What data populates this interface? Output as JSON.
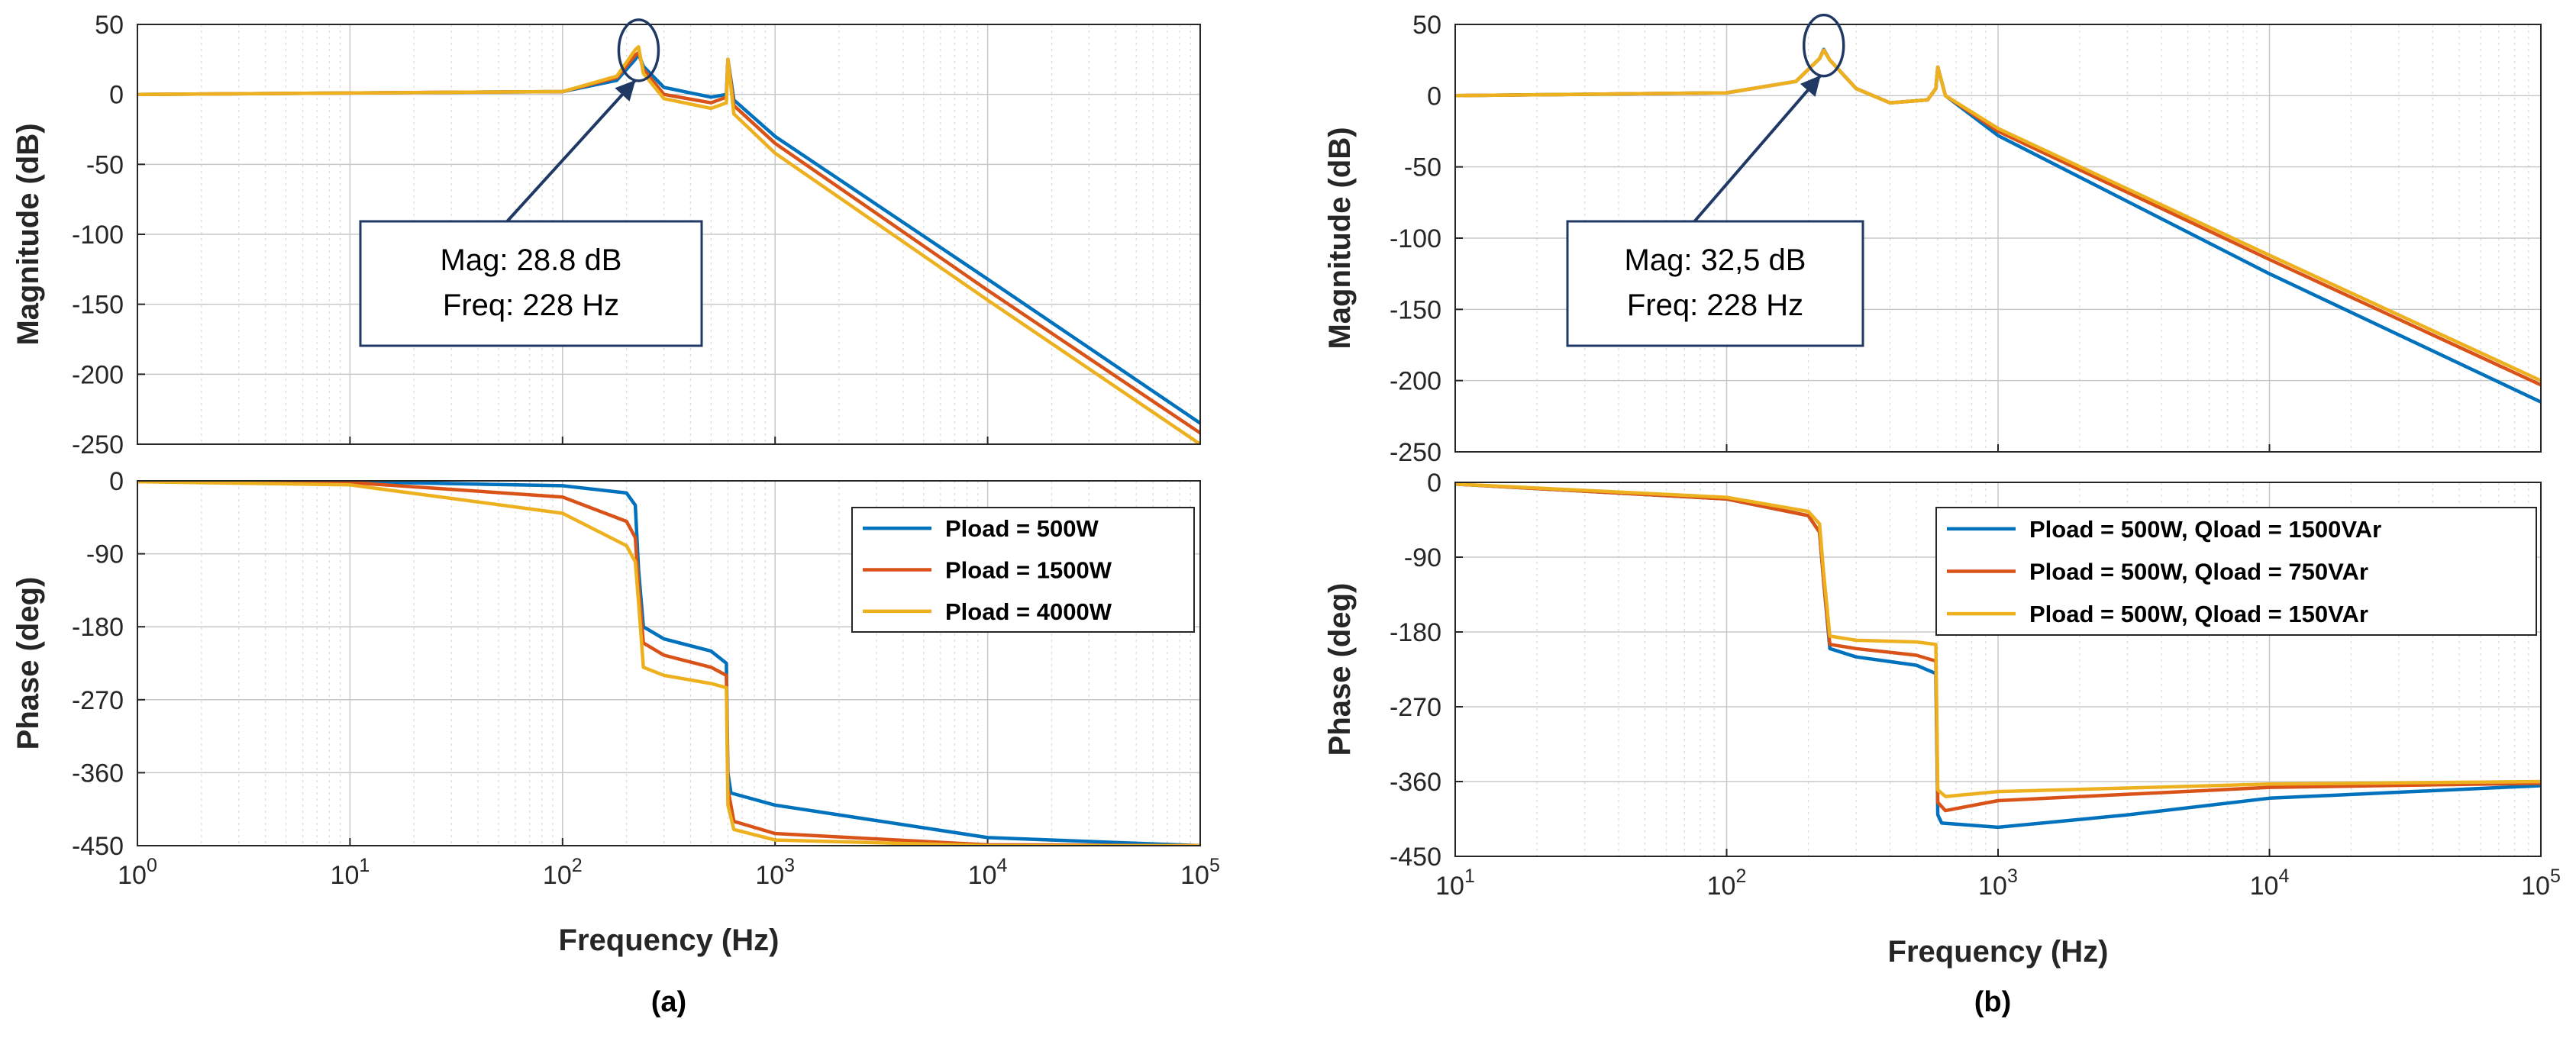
{
  "figure": {
    "panels": [
      {
        "label": "(a)",
        "xlabel": "Frequency  (Hz)",
        "mag_ylabel": "Magnitude (dB)",
        "phase_ylabel": "Phase (deg)",
        "xticks": [
          {
            "exp": 0,
            "base": "10",
            "sup": "0"
          },
          {
            "exp": 1,
            "base": "10",
            "sup": "1"
          },
          {
            "exp": 2,
            "base": "10",
            "sup": "2"
          },
          {
            "exp": 3,
            "base": "10",
            "sup": "3"
          },
          {
            "exp": 4,
            "base": "10",
            "sup": "4"
          },
          {
            "exp": 5,
            "base": "10",
            "sup": "5"
          }
        ],
        "annotation": {
          "line1": "Mag: 28.8 dB",
          "line2": "Freq: 228 Hz",
          "freq_hz": 228,
          "mag_db": 28.8
        }
      },
      {
        "label": "(b)",
        "xlabel": "Frequency  (Hz)",
        "mag_ylabel": "Magnitude (dB)",
        "phase_ylabel": "Phase (deg)",
        "xticks": [
          {
            "exp": 1,
            "base": "10",
            "sup": "1"
          },
          {
            "exp": 2,
            "base": "10",
            "sup": "2"
          },
          {
            "exp": 3,
            "base": "10",
            "sup": "3"
          },
          {
            "exp": 4,
            "base": "10",
            "sup": "4"
          },
          {
            "exp": 5,
            "base": "10",
            "sup": "5"
          }
        ],
        "annotation": {
          "line1": "Mag: 32,5 dB",
          "line2": "Freq: 228 Hz",
          "freq_hz": 228,
          "mag_db": 32.5
        }
      }
    ]
  },
  "chart_data": [
    {
      "type": "line",
      "title": "",
      "panel": "(a)",
      "subplot": "magnitude",
      "xlabel": "Frequency  (Hz)",
      "ylabel": "Magnitude (dB)",
      "xscale": "log",
      "xlim": [
        1,
        100000
      ],
      "ylim": [
        -250,
        50
      ],
      "yticks": [
        50,
        0,
        -50,
        -100,
        -150,
        -200,
        -250
      ],
      "grid": true,
      "series": [
        {
          "name": "Pload = 500W",
          "color": "#0072BD",
          "points": [
            [
              1,
              0
            ],
            [
              100,
              2
            ],
            [
              180,
              10
            ],
            [
              220,
              25
            ],
            [
              228,
              28.8
            ],
            [
              240,
              20
            ],
            [
              300,
              5
            ],
            [
              500,
              -2
            ],
            [
              590,
              0
            ],
            [
              600,
              25
            ],
            [
              640,
              -4
            ],
            [
              1000,
              -30
            ],
            [
              10000,
              -132
            ],
            [
              100000,
              -235
            ]
          ]
        },
        {
          "name": "Pload = 1500W",
          "color": "#D95319",
          "points": [
            [
              1,
              0
            ],
            [
              100,
              2
            ],
            [
              180,
              12
            ],
            [
              220,
              28
            ],
            [
              228,
              30
            ],
            [
              240,
              18
            ],
            [
              300,
              0
            ],
            [
              500,
              -6
            ],
            [
              590,
              -2
            ],
            [
              600,
              25
            ],
            [
              640,
              -8
            ],
            [
              1000,
              -35
            ],
            [
              10000,
              -140
            ],
            [
              100000,
              -242
            ]
          ]
        },
        {
          "name": "Pload = 4000W",
          "color": "#EDB120",
          "points": [
            [
              1,
              0
            ],
            [
              100,
              2
            ],
            [
              180,
              13
            ],
            [
              220,
              32
            ],
            [
              228,
              34
            ],
            [
              240,
              15
            ],
            [
              300,
              -3
            ],
            [
              500,
              -10
            ],
            [
              590,
              -6
            ],
            [
              600,
              25
            ],
            [
              640,
              -14
            ],
            [
              1000,
              -42
            ],
            [
              10000,
              -147
            ],
            [
              100000,
              -250
            ]
          ]
        }
      ]
    },
    {
      "type": "line",
      "title": "",
      "panel": "(a)",
      "subplot": "phase",
      "xlabel": "Frequency  (Hz)",
      "ylabel": "Phase (deg)",
      "xscale": "log",
      "xlim": [
        1,
        100000
      ],
      "ylim": [
        -450,
        0
      ],
      "yticks": [
        0,
        -90,
        -180,
        -270,
        -360,
        -450
      ],
      "grid": true,
      "legend_position": "top-right",
      "series": [
        {
          "name": "Pload = 500W",
          "color": "#0072BD",
          "points": [
            [
              1,
              0
            ],
            [
              10,
              -1
            ],
            [
              100,
              -6
            ],
            [
              200,
              -15
            ],
            [
              220,
              -30
            ],
            [
              228,
              -110
            ],
            [
              240,
              -180
            ],
            [
              300,
              -195
            ],
            [
              500,
              -210
            ],
            [
              590,
              -225
            ],
            [
              600,
              -360
            ],
            [
              620,
              -385
            ],
            [
              1000,
              -400
            ],
            [
              10000,
              -440
            ],
            [
              100000,
              -450
            ]
          ]
        },
        {
          "name": "Pload = 1500W",
          "color": "#D95319",
          "points": [
            [
              1,
              0
            ],
            [
              10,
              -2
            ],
            [
              100,
              -20
            ],
            [
              200,
              -50
            ],
            [
              220,
              -70
            ],
            [
              228,
              -130
            ],
            [
              240,
              -200
            ],
            [
              300,
              -215
            ],
            [
              500,
              -230
            ],
            [
              590,
              -240
            ],
            [
              600,
              -380
            ],
            [
              640,
              -420
            ],
            [
              1000,
              -435
            ],
            [
              10000,
              -449
            ],
            [
              100000,
              -450
            ]
          ]
        },
        {
          "name": "Pload = 4000W",
          "color": "#EDB120",
          "points": [
            [
              1,
              -1
            ],
            [
              10,
              -5
            ],
            [
              100,
              -40
            ],
            [
              200,
              -80
            ],
            [
              220,
              -100
            ],
            [
              228,
              -150
            ],
            [
              240,
              -230
            ],
            [
              300,
              -240
            ],
            [
              500,
              -250
            ],
            [
              590,
              -255
            ],
            [
              600,
              -400
            ],
            [
              640,
              -430
            ],
            [
              1000,
              -443
            ],
            [
              10000,
              -450
            ],
            [
              100000,
              -450
            ]
          ]
        }
      ]
    },
    {
      "type": "line",
      "title": "",
      "panel": "(b)",
      "subplot": "magnitude",
      "xlabel": "Frequency  (Hz)",
      "ylabel": "Magnitude (dB)",
      "xscale": "log",
      "xlim": [
        10,
        100000
      ],
      "ylim": [
        -250,
        50
      ],
      "yticks": [
        50,
        0,
        -50,
        -100,
        -150,
        -200,
        -250
      ],
      "grid": true,
      "series": [
        {
          "name": "Pload = 500W, Qload = 1500VAr",
          "color": "#0072BD",
          "points": [
            [
              10,
              0
            ],
            [
              100,
              2
            ],
            [
              180,
              10
            ],
            [
              220,
              26
            ],
            [
              228,
              32.5
            ],
            [
              240,
              25
            ],
            [
              300,
              5
            ],
            [
              400,
              -5
            ],
            [
              550,
              -3
            ],
            [
              590,
              5
            ],
            [
              600,
              20
            ],
            [
              640,
              0
            ],
            [
              1000,
              -28
            ],
            [
              10000,
              -125
            ],
            [
              100000,
              -215
            ]
          ]
        },
        {
          "name": "Pload = 500W, Qload = 750VAr",
          "color": "#D95319",
          "points": [
            [
              10,
              0
            ],
            [
              100,
              2
            ],
            [
              180,
              10
            ],
            [
              220,
              26
            ],
            [
              228,
              32
            ],
            [
              240,
              25
            ],
            [
              300,
              5
            ],
            [
              400,
              -5
            ],
            [
              550,
              -3
            ],
            [
              590,
              5
            ],
            [
              600,
              20
            ],
            [
              640,
              0
            ],
            [
              1000,
              -25
            ],
            [
              10000,
              -115
            ],
            [
              100000,
              -203
            ]
          ]
        },
        {
          "name": "Pload = 500W, Qload = 150VAr",
          "color": "#EDB120",
          "points": [
            [
              10,
              0
            ],
            [
              100,
              2
            ],
            [
              180,
              10
            ],
            [
              220,
              26
            ],
            [
              228,
              32
            ],
            [
              240,
              25
            ],
            [
              300,
              5
            ],
            [
              400,
              -5
            ],
            [
              550,
              -3
            ],
            [
              590,
              5
            ],
            [
              600,
              20
            ],
            [
              640,
              0
            ],
            [
              1000,
              -23
            ],
            [
              10000,
              -112
            ],
            [
              100000,
              -200
            ]
          ]
        }
      ]
    },
    {
      "type": "line",
      "title": "",
      "panel": "(b)",
      "subplot": "phase",
      "xlabel": "Frequency  (Hz)",
      "ylabel": "Phase (deg)",
      "xscale": "log",
      "xlim": [
        10,
        100000
      ],
      "ylim": [
        -450,
        0
      ],
      "yticks": [
        0,
        -90,
        -180,
        -270,
        -360,
        -450
      ],
      "grid": true,
      "legend_position": "top-right",
      "series": [
        {
          "name": "Pload = 500W, Qload = 1500VAr",
          "color": "#0072BD",
          "points": [
            [
              10,
              -2
            ],
            [
              100,
              -20
            ],
            [
              200,
              -40
            ],
            [
              220,
              -60
            ],
            [
              228,
              -120
            ],
            [
              240,
              -200
            ],
            [
              300,
              -210
            ],
            [
              500,
              -220
            ],
            [
              590,
              -230
            ],
            [
              600,
              -400
            ],
            [
              620,
              -410
            ],
            [
              1000,
              -415
            ],
            [
              3000,
              -400
            ],
            [
              10000,
              -380
            ],
            [
              100000,
              -365
            ]
          ]
        },
        {
          "name": "Pload = 500W, Qload = 750VAr",
          "color": "#D95319",
          "points": [
            [
              10,
              -2
            ],
            [
              100,
              -20
            ],
            [
              200,
              -40
            ],
            [
              220,
              -60
            ],
            [
              228,
              -120
            ],
            [
              240,
              -195
            ],
            [
              300,
              -200
            ],
            [
              500,
              -208
            ],
            [
              590,
              -215
            ],
            [
              600,
              -385
            ],
            [
              640,
              -395
            ],
            [
              1000,
              -383
            ],
            [
              10000,
              -367
            ],
            [
              100000,
              -362
            ]
          ]
        },
        {
          "name": "Pload = 500W, Qload = 150VAr",
          "color": "#EDB120",
          "points": [
            [
              10,
              -2
            ],
            [
              100,
              -18
            ],
            [
              200,
              -35
            ],
            [
              220,
              -50
            ],
            [
              228,
              -110
            ],
            [
              240,
              -185
            ],
            [
              300,
              -190
            ],
            [
              500,
              -192
            ],
            [
              590,
              -195
            ],
            [
              600,
              -370
            ],
            [
              640,
              -378
            ],
            [
              1000,
              -372
            ],
            [
              10000,
              -363
            ],
            [
              100000,
              -360
            ]
          ]
        }
      ]
    }
  ]
}
